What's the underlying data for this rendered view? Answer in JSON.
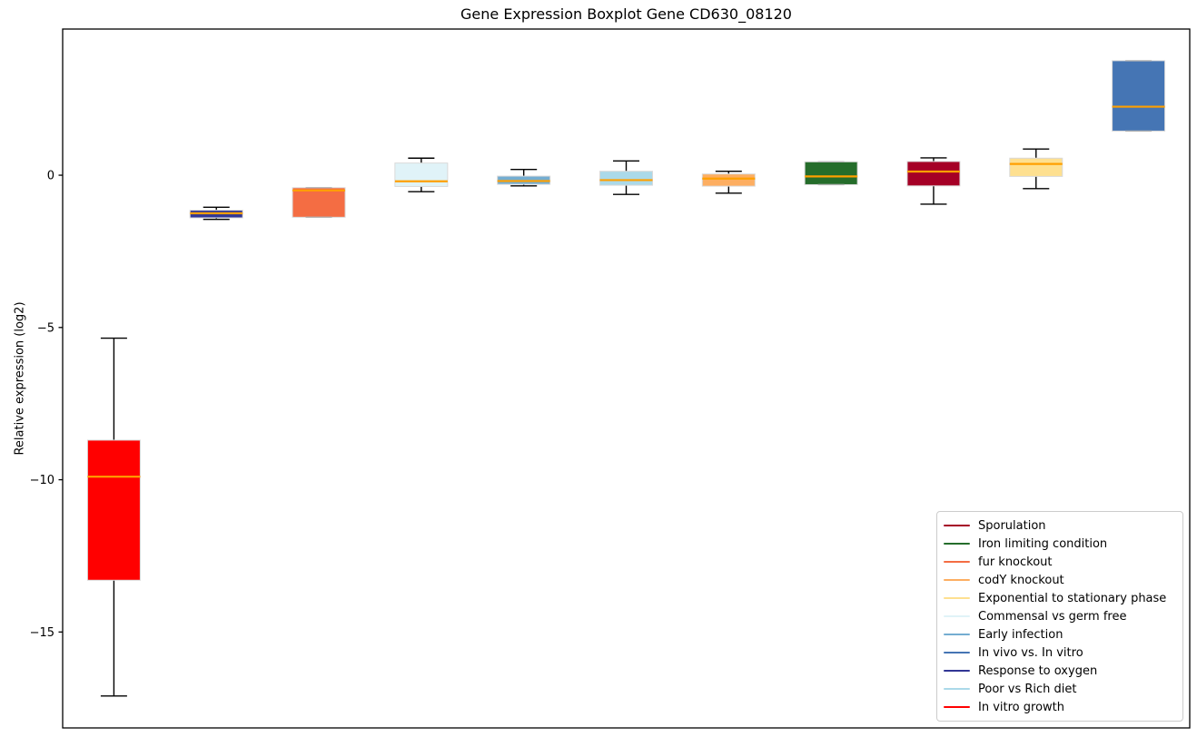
{
  "figure": {
    "title": "Gene Expression Boxplot Gene CD630_08120"
  },
  "chart_data": {
    "type": "boxplot",
    "title": "Gene Expression Boxplot Gene CD630_08120",
    "xlabel": "",
    "ylabel": "Relative expression (log2)",
    "ylim": [
      -18.15,
      4.8
    ],
    "yticks": [
      0,
      -5,
      -10,
      -15
    ],
    "yticklabels": [
      "0",
      "−5",
      "−10",
      "−15"
    ],
    "xticklabels": [],
    "grid": false,
    "legend_position": "lower right",
    "style": {
      "median_color": "#ffa000",
      "whisker_color": "#000000",
      "degenerate_cap_color": "#b3b3b3",
      "box_edge_color": "#d9d9d9",
      "axis_color": "#000000",
      "background": "#ffffff",
      "legend_border_color": "#cccccc",
      "text_color": "#000000"
    },
    "boxes": [
      {
        "label": "In vitro growth",
        "color": "#ff0000",
        "whisker_low": -17.1,
        "q1": -13.3,
        "median": -9.9,
        "q3": -8.7,
        "whisker_high": -5.35
      },
      {
        "label": "Response to oxygen",
        "color": "#313695",
        "whisker_low": -1.45,
        "q1": -1.4,
        "median": -1.25,
        "q3": -1.15,
        "whisker_high": -1.05
      },
      {
        "label": "fur knockout",
        "color": "#f46d43",
        "whisker_low": -1.38,
        "q1": -1.38,
        "median": -0.5,
        "q3": -0.41,
        "whisker_high": -0.41
      },
      {
        "label": "Commensal vs germ free",
        "color": "#e0f3f8",
        "whisker_low": -0.54,
        "q1": -0.37,
        "median": -0.2,
        "q3": 0.4,
        "whisker_high": 0.56
      },
      {
        "label": "Early infection",
        "color": "#74add1",
        "whisker_low": -0.35,
        "q1": -0.3,
        "median": -0.19,
        "q3": -0.03,
        "whisker_high": 0.19
      },
      {
        "label": "Poor vs Rich diet",
        "color": "#abd9e9",
        "whisker_low": -0.63,
        "q1": -0.33,
        "median": -0.16,
        "q3": 0.13,
        "whisker_high": 0.47
      },
      {
        "label": "codY knockout",
        "color": "#fdae61",
        "whisker_low": -0.59,
        "q1": -0.36,
        "median": -0.11,
        "q3": 0.04,
        "whisker_high": 0.13
      },
      {
        "label": "Iron limiting condition",
        "color": "#256d2b",
        "whisker_low": -0.31,
        "q1": -0.31,
        "median": -0.04,
        "q3": 0.44,
        "whisker_high": 0.44
      },
      {
        "label": "Sporulation",
        "color": "#a50026",
        "whisker_low": -0.95,
        "q1": -0.35,
        "median": 0.12,
        "q3": 0.45,
        "whisker_high": 0.57
      },
      {
        "label": "Exponential to stationary phase",
        "color": "#fee090",
        "whisker_low": -0.44,
        "q1": -0.04,
        "median": 0.37,
        "q3": 0.56,
        "whisker_high": 0.86
      },
      {
        "label": "In vivo vs. In vitro",
        "color": "#4575b4",
        "whisker_low": 1.45,
        "q1": 1.45,
        "median": 2.25,
        "q3": 3.76,
        "whisker_high": 3.76
      }
    ],
    "legend": [
      {
        "label": "Sporulation",
        "color": "#a50026"
      },
      {
        "label": "Iron limiting condition",
        "color": "#256d2b"
      },
      {
        "label": "fur knockout",
        "color": "#f46d43"
      },
      {
        "label": "codY knockout",
        "color": "#fdae61"
      },
      {
        "label": "Exponential to stationary phase",
        "color": "#fee090"
      },
      {
        "label": "Commensal vs germ free",
        "color": "#e0f3f8"
      },
      {
        "label": "Early infection",
        "color": "#74add1"
      },
      {
        "label": "In vivo vs. In vitro",
        "color": "#4575b4"
      },
      {
        "label": "Response to oxygen",
        "color": "#313695"
      },
      {
        "label": "Poor vs Rich diet",
        "color": "#abd9e9"
      },
      {
        "label": "In vitro growth",
        "color": "#ff0000"
      }
    ]
  }
}
